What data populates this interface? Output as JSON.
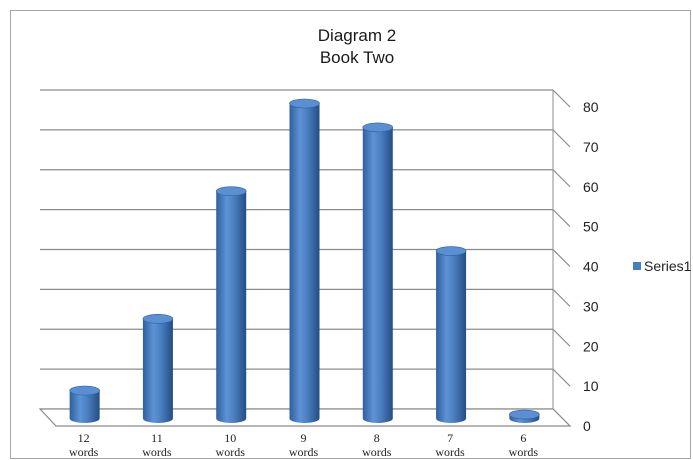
{
  "chart_data": {
    "type": "bar",
    "title": "Diagram 2",
    "subtitle": "Book Two",
    "categories": [
      [
        "12",
        "words"
      ],
      [
        "11",
        "words"
      ],
      [
        "10",
        "words"
      ],
      [
        "9",
        "words"
      ],
      [
        "8",
        "words"
      ],
      [
        "7",
        "words"
      ],
      [
        "6",
        "words"
      ]
    ],
    "series": [
      {
        "name": "Series1",
        "values": [
          7,
          25,
          57,
          79,
          73,
          42,
          1
        ],
        "color": "#4a7ebf"
      }
    ],
    "ylim": [
      0,
      80
    ],
    "yticks": [
      0,
      10,
      20,
      30,
      40,
      50,
      60,
      70,
      80
    ],
    "grid": true,
    "legend": "right",
    "style": "3d-cylinder"
  }
}
